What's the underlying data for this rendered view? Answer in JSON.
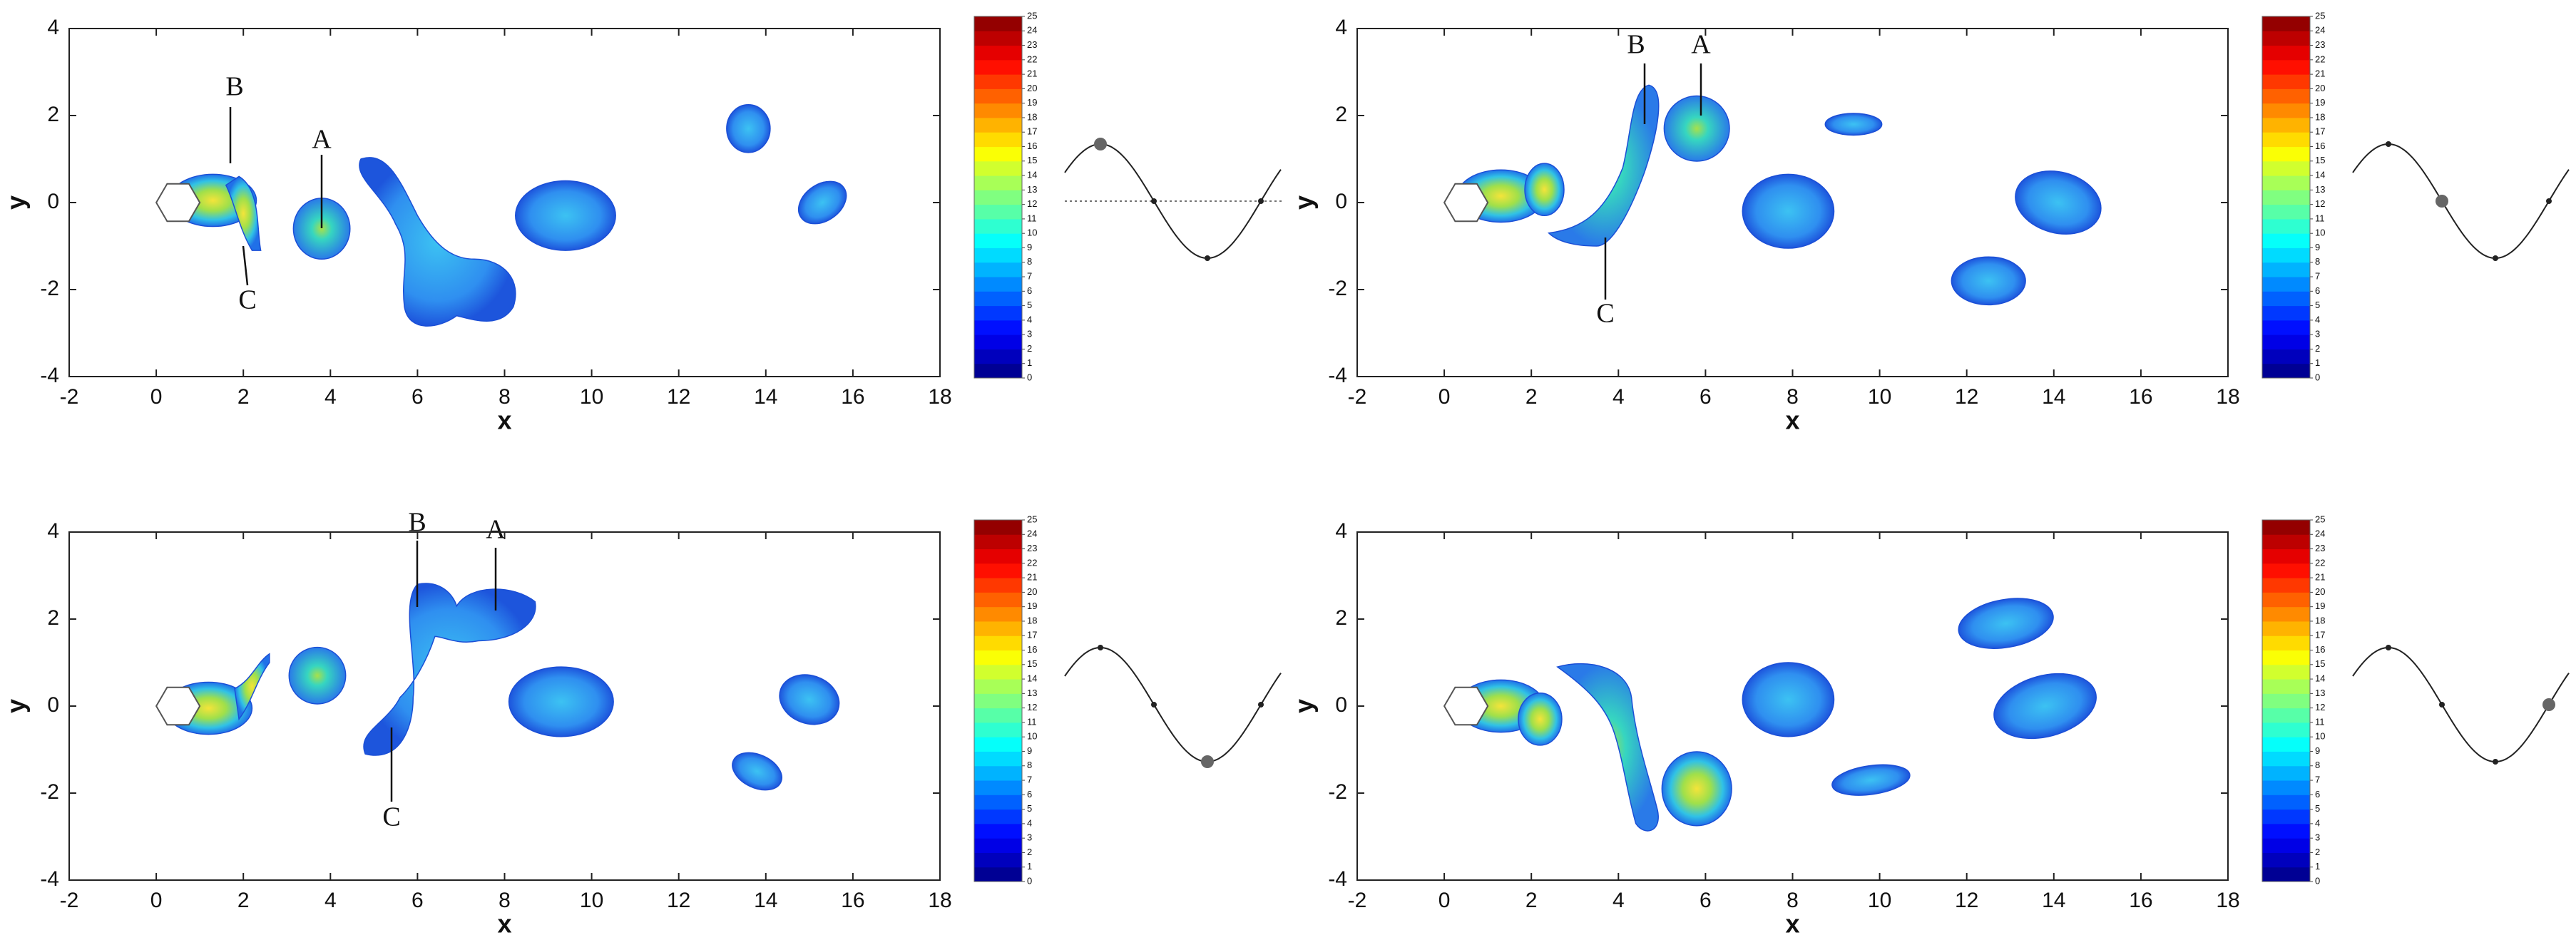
{
  "chart_data": [
    {
      "type": "contour",
      "xlabel": "x",
      "ylabel": "y",
      "xlim": [
        -2,
        18
      ],
      "ylim": [
        -4,
        4
      ],
      "xticks": [
        -2,
        0,
        2,
        4,
        6,
        8,
        10,
        12,
        14,
        16,
        18
      ],
      "yticks": [
        -4,
        -2,
        0,
        2,
        4
      ],
      "clim": [
        0,
        25
      ],
      "cticks": [
        0,
        1,
        2,
        3,
        4,
        5,
        6,
        7,
        8,
        9,
        10,
        11,
        12,
        13,
        14,
        15,
        16,
        17,
        18,
        19,
        20,
        21,
        22,
        23,
        24,
        25
      ],
      "annotations": [
        "B",
        "A",
        "C"
      ]
    },
    {
      "type": "contour",
      "xlabel": "x",
      "ylabel": "y",
      "xlim": [
        -2,
        18
      ],
      "ylim": [
        -4,
        4
      ],
      "xticks": [
        -2,
        0,
        2,
        4,
        6,
        8,
        10,
        12,
        14,
        16,
        18
      ],
      "yticks": [
        -4,
        -2,
        0,
        2,
        4
      ],
      "clim": [
        0,
        25
      ],
      "cticks": [
        0,
        1,
        2,
        3,
        4,
        5,
        6,
        7,
        8,
        9,
        10,
        11,
        12,
        13,
        14,
        15,
        16,
        17,
        18,
        19,
        20,
        21,
        22,
        23,
        24,
        25
      ],
      "annotations": [
        "B",
        "A",
        "C"
      ]
    },
    {
      "type": "contour",
      "xlabel": "x",
      "ylabel": "y",
      "xlim": [
        -2,
        18
      ],
      "ylim": [
        -4,
        4
      ],
      "xticks": [
        -2,
        0,
        2,
        4,
        6,
        8,
        10,
        12,
        14,
        16,
        18
      ],
      "yticks": [
        -4,
        -2,
        0,
        2,
        4
      ],
      "clim": [
        0,
        25
      ],
      "cticks": [
        0,
        1,
        2,
        3,
        4,
        5,
        6,
        7,
        8,
        9,
        10,
        11,
        12,
        13,
        14,
        15,
        16,
        17,
        18,
        19,
        20,
        21,
        22,
        23,
        24,
        25
      ],
      "annotations": [
        "B",
        "A",
        "C"
      ]
    },
    {
      "type": "contour",
      "xlabel": "x",
      "ylabel": "y",
      "xlim": [
        -2,
        18
      ],
      "ylim": [
        -4,
        4
      ],
      "xticks": [
        -2,
        0,
        2,
        4,
        6,
        8,
        10,
        12,
        14,
        16,
        18
      ],
      "yticks": [
        -4,
        -2,
        0,
        2,
        4
      ],
      "clim": [
        0,
        25
      ],
      "cticks": [
        0,
        1,
        2,
        3,
        4,
        5,
        6,
        7,
        8,
        9,
        10,
        11,
        12,
        13,
        14,
        15,
        16,
        17,
        18,
        19,
        20,
        21,
        22,
        23,
        24,
        25
      ]
    }
  ]
}
